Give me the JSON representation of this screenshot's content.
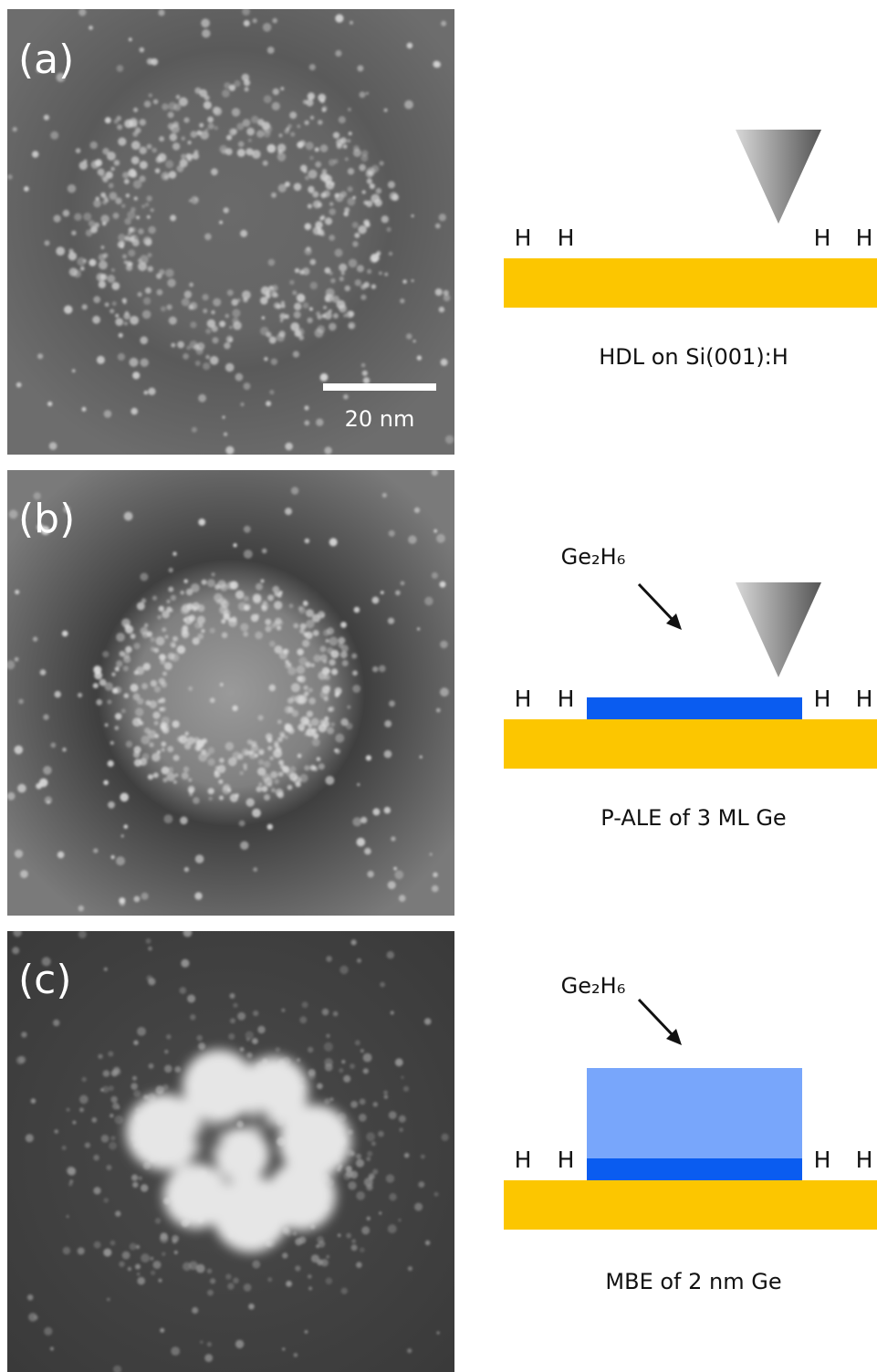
{
  "panels": [
    {
      "label": "(a)",
      "scale_bar": "20 nm",
      "hydrogen": [
        "H",
        "H",
        "H",
        "H"
      ],
      "caption": "HDL on Si(001):H"
    },
    {
      "label": "(b)",
      "precursor": "Ge₂H₆",
      "hydrogen": [
        "H",
        "H",
        "H",
        "H"
      ],
      "caption": "P-ALE of 3 ML Ge"
    },
    {
      "label": "(c)",
      "precursor": "Ge₂H₆",
      "hydrogen": [
        "H",
        "H",
        "H",
        "H"
      ],
      "caption": "MBE of 2 nm Ge"
    }
  ]
}
